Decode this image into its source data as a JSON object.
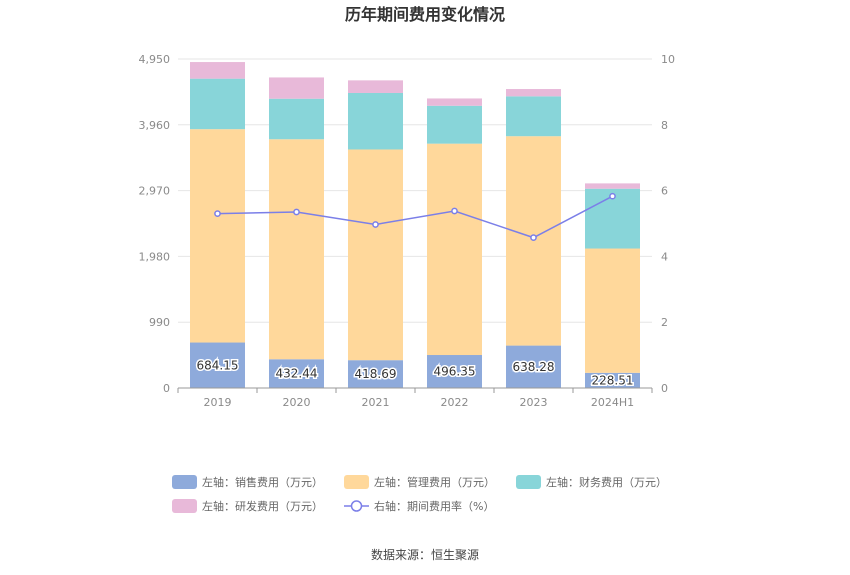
{
  "chart_data": {
    "type": "bar",
    "stacked": true,
    "title": "历年期间费用变化情况",
    "categories": [
      "2019",
      "2020",
      "2021",
      "2022",
      "2023",
      "2024H1"
    ],
    "ylim_left": [
      0,
      4950
    ],
    "left_ticks": [
      "0",
      "990",
      "1,980",
      "2,970",
      "3,960",
      "4,950"
    ],
    "ylim_right": [
      0,
      10
    ],
    "right_ticks": [
      "0",
      "2",
      "4",
      "6",
      "8",
      "10"
    ],
    "series": [
      {
        "name": "左轴：销售费用（万元）",
        "axis": "left",
        "color": "#8eaadb",
        "values": [
          684.15,
          432.44,
          418.69,
          496.35,
          638.28,
          228.51
        ],
        "labels": [
          "684.15",
          "432.44",
          "418.69",
          "496.35",
          "638.28",
          "228.51"
        ]
      },
      {
        "name": "左轴：管理费用（万元）",
        "axis": "left",
        "color": "#ffd89b",
        "values": [
          3210,
          3310,
          3170,
          3180,
          3150,
          1870
        ]
      },
      {
        "name": "左轴：财务费用（万元）",
        "axis": "left",
        "color": "#88d5d9",
        "values": [
          760,
          610,
          850,
          570,
          600,
          900
        ]
      },
      {
        "name": "左轴：研发费用（万元）",
        "axis": "left",
        "color": "#e8b9d9",
        "values": [
          250,
          320,
          190,
          110,
          110,
          80
        ]
      },
      {
        "name": "右轴：期间费用率（%）",
        "axis": "right",
        "type": "line",
        "color": "#7b7fe8",
        "values": [
          5.3,
          5.35,
          4.97,
          5.38,
          4.57,
          5.83
        ]
      }
    ],
    "legend_placement": "bottom",
    "grid": true
  },
  "source": "数据来源：恒生聚源"
}
